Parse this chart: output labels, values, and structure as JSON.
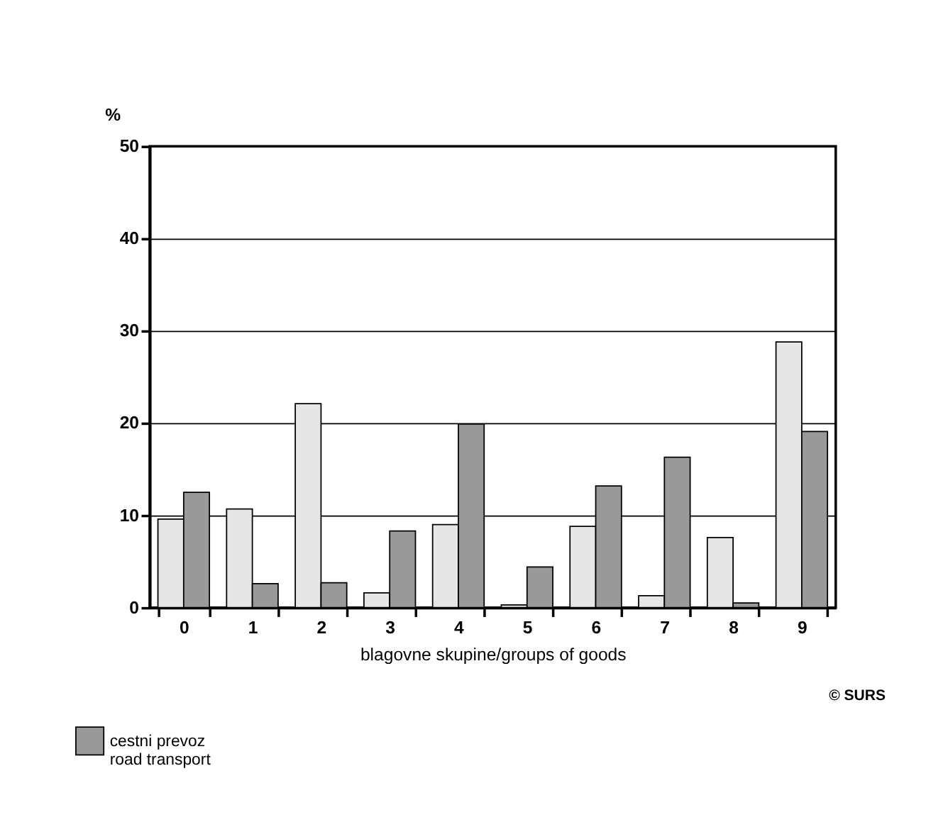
{
  "chart_data": {
    "type": "bar",
    "xlabel": "blagovne skupine/groups of goods",
    "ylabel": "%",
    "categories": [
      "0",
      "1",
      "2",
      "3",
      "4",
      "5",
      "6",
      "7",
      "8",
      "9"
    ],
    "series": [
      {
        "color": "#e6e6e6",
        "values": [
          9.6,
          10.7,
          22.1,
          1.6,
          9.0,
          0.3,
          8.8,
          1.3,
          7.6,
          28.8
        ]
      },
      {
        "name": "cestni prevoz\nroad transport",
        "color": "#999999",
        "values": [
          12.5,
          2.6,
          2.7,
          8.3,
          19.9,
          4.4,
          13.2,
          16.3,
          0.5,
          19.1
        ]
      }
    ],
    "ylim": [
      0,
      50
    ],
    "yticks": [
      0,
      10,
      20,
      30,
      40,
      50
    ],
    "grid": "y",
    "legend": "bottom left",
    "annotations": [
      "© SURS"
    ]
  }
}
